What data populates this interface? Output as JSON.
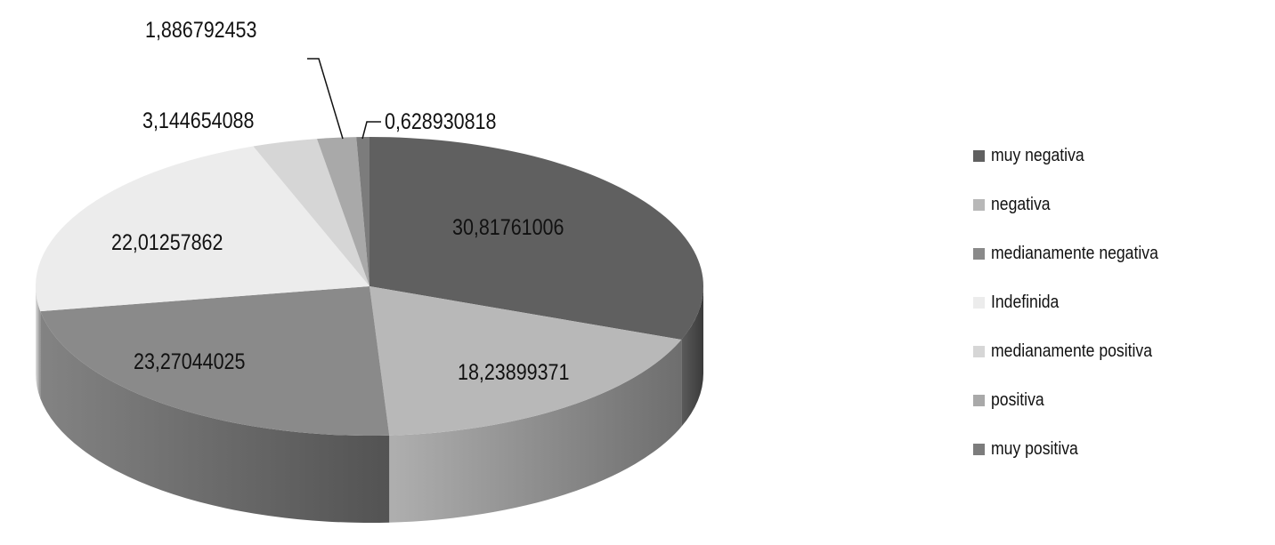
{
  "chart_data": {
    "type": "pie",
    "style": "3d",
    "title": "",
    "legend_position": "right",
    "slices": [
      {
        "name": "muy negativa",
        "value": 30.81761006,
        "label": "30,81761006",
        "color": "#606060"
      },
      {
        "name": "negativa",
        "value": 18.23899371,
        "label": "18,23899371",
        "color": "#b8b8b8"
      },
      {
        "name": "medianamente negativa",
        "value": 23.27044025,
        "label": "23,27044025",
        "color": "#8a8a8a"
      },
      {
        "name": "Indefinida",
        "value": 22.01257862,
        "label": "22,01257862",
        "color": "#ececec"
      },
      {
        "name": "medianamente positiva",
        "value": 3.144654088,
        "label": "3,144654088",
        "color": "#d6d6d6"
      },
      {
        "name": "positiva",
        "value": 1.886792453,
        "label": "1,886792453",
        "color": "#a9a9a9"
      },
      {
        "name": "muy positiva",
        "value": 0.628930818,
        "label": "0,628930818",
        "color": "#7c7c7c"
      }
    ]
  }
}
